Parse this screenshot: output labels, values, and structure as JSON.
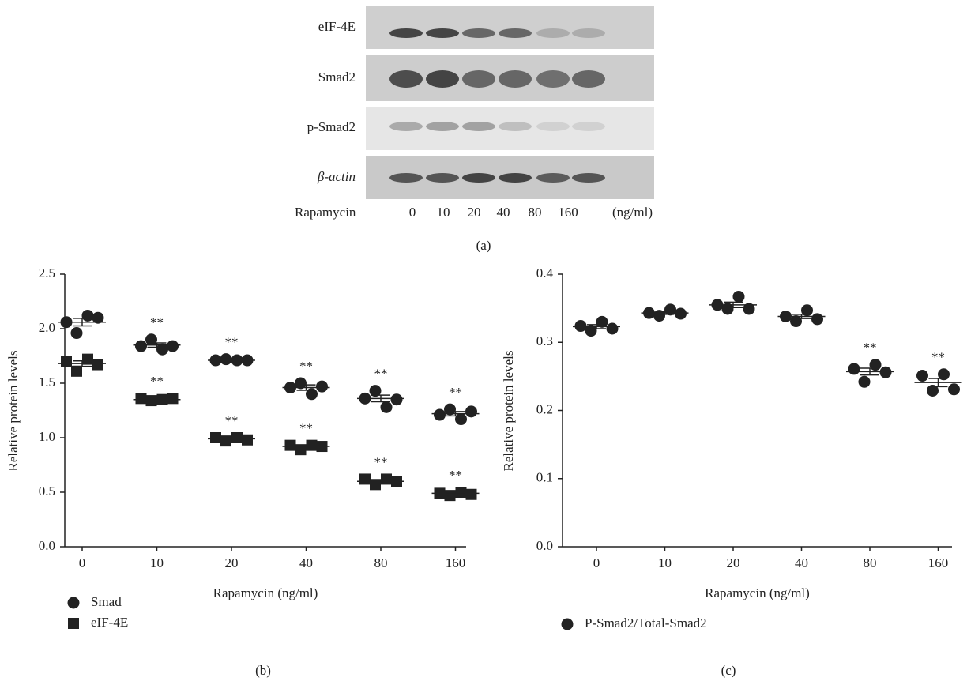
{
  "blot": {
    "rows": [
      "eIF-4E",
      "Smad2",
      "p-Smad2",
      "β-actin"
    ],
    "treatment_label": "Rapamycin",
    "doses": [
      "0",
      "10",
      "20",
      "40",
      "80",
      "160"
    ],
    "unit": "(ng/ml)",
    "caption": "(a)"
  },
  "chart_data": [
    {
      "type": "dot",
      "categories": [
        "0",
        "10",
        "20",
        "40",
        "80",
        "160"
      ],
      "series": [
        {
          "name": "Smad",
          "marker": "circle",
          "color": "#222222",
          "values": [
            [
              2.06,
              1.96,
              2.12,
              2.1
            ],
            [
              1.84,
              1.9,
              1.81,
              1.84
            ],
            [
              1.71,
              1.72,
              1.71,
              1.71
            ],
            [
              1.46,
              1.5,
              1.4,
              1.47
            ],
            [
              1.36,
              1.43,
              1.28,
              1.35
            ],
            [
              1.21,
              1.26,
              1.17,
              1.24
            ]
          ],
          "means": [
            2.06,
            1.85,
            1.71,
            1.46,
            1.36,
            1.22
          ],
          "errors": [
            0.035,
            0.02,
            0.005,
            0.025,
            0.03,
            0.02
          ],
          "significance": [
            null,
            "**",
            "**",
            "**",
            "**",
            "**"
          ]
        },
        {
          "name": "eIF-4E",
          "marker": "square",
          "color": "#222222",
          "values": [
            [
              1.7,
              1.61,
              1.72,
              1.67
            ],
            [
              1.36,
              1.34,
              1.35,
              1.36
            ],
            [
              1.0,
              0.97,
              1.0,
              0.98
            ],
            [
              0.93,
              0.89,
              0.93,
              0.92
            ],
            [
              0.62,
              0.57,
              0.62,
              0.6
            ],
            [
              0.49,
              0.47,
              0.5,
              0.48
            ]
          ],
          "means": [
            1.68,
            1.35,
            0.99,
            0.92,
            0.6,
            0.49
          ],
          "errors": [
            0.025,
            0.005,
            0.01,
            0.01,
            0.015,
            0.007
          ],
          "significance": [
            null,
            "**",
            "**",
            "**",
            "**",
            "**"
          ]
        }
      ],
      "ylim": [
        0,
        2.5
      ],
      "yticks": [
        {
          "value": 0,
          "label": "0.0"
        },
        0.5,
        {
          "value": 1,
          "label": "1.0"
        },
        1.5,
        {
          "value": 2,
          "label": "2.0"
        },
        2.5
      ],
      "x_label": "Rapamycin (ng/ml)",
      "y_label": "Relative protein levels",
      "caption": "(b)"
    },
    {
      "type": "dot",
      "categories": [
        "0",
        "10",
        "20",
        "40",
        "80",
        "160"
      ],
      "series": [
        {
          "name": "P-Smad2/Total-Smad2",
          "marker": "circle",
          "color": "#222222",
          "values": [
            [
              0.324,
              0.317,
              0.33,
              0.32
            ],
            [
              0.343,
              0.339,
              0.348,
              0.342
            ],
            [
              0.355,
              0.349,
              0.367,
              0.349
            ],
            [
              0.338,
              0.331,
              0.347,
              0.334
            ],
            [
              0.261,
              0.242,
              0.267,
              0.256
            ],
            [
              0.251,
              0.229,
              0.253,
              0.231
            ]
          ],
          "means": [
            0.323,
            0.343,
            0.355,
            0.338,
            0.257,
            0.241
          ],
          "errors": [
            0.003,
            0.002,
            0.004,
            0.003,
            0.005,
            0.006
          ],
          "significance": [
            null,
            null,
            null,
            null,
            "**",
            "**"
          ]
        }
      ],
      "ylim": [
        0,
        0.4
      ],
      "yticks": [
        {
          "value": 0,
          "label": "0.0"
        },
        0.1,
        0.2,
        0.3,
        0.4
      ],
      "x_label": "Rapamycin (ng/ml)",
      "y_label": "Relative protein levels",
      "caption": "(c)"
    }
  ]
}
